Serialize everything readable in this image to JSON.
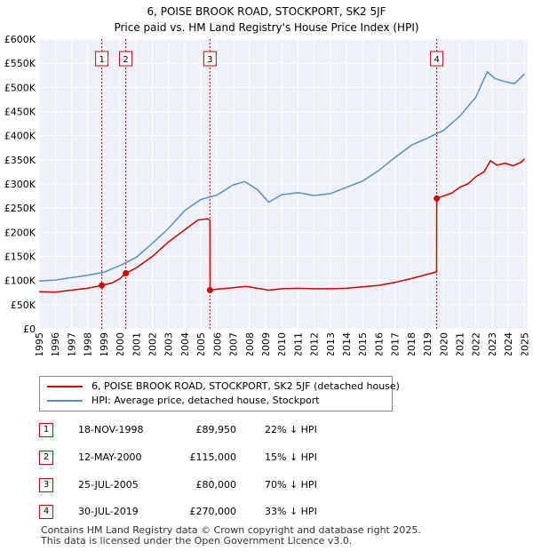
{
  "chart_data": {
    "type": "line",
    "title": "6, POISE BROOK ROAD, STOCKPORT, SK2 5JF",
    "subtitle": "Price paid vs. HM Land Registry's House Price Index (HPI)",
    "xlim": [
      1995,
      2025.2
    ],
    "ylim": [
      0,
      600000
    ],
    "y_ticks": [
      0,
      50000,
      100000,
      150000,
      200000,
      250000,
      300000,
      350000,
      400000,
      450000,
      500000,
      550000,
      600000
    ],
    "y_tick_labels": [
      "£0",
      "£50K",
      "£100K",
      "£150K",
      "£200K",
      "£250K",
      "£300K",
      "£350K",
      "£400K",
      "£450K",
      "£500K",
      "£550K",
      "£600K"
    ],
    "x_ticks": [
      1995,
      1996,
      1997,
      1998,
      1999,
      2000,
      2001,
      2002,
      2003,
      2004,
      2005,
      2006,
      2007,
      2008,
      2009,
      2010,
      2011,
      2012,
      2013,
      2014,
      2015,
      2016,
      2017,
      2018,
      2019,
      2020,
      2021,
      2022,
      2023,
      2024,
      2025
    ],
    "x_tick_labels": [
      "1995",
      "1996",
      "1997",
      "1998",
      "1999",
      "2000",
      "2001",
      "2002",
      "2003",
      "2004",
      "2005",
      "2006",
      "2007",
      "2008",
      "2009",
      "2010",
      "2011",
      "2012",
      "2013",
      "2014",
      "2015",
      "2016",
      "2017",
      "2018",
      "2019",
      "2020",
      "2021",
      "2022",
      "2023",
      "2024",
      "2025"
    ],
    "grid": true,
    "series": [
      {
        "name": "6, POISE BROOK ROAD, STOCKPORT, SK2 5JF (detached house)",
        "color": "#cc0000",
        "x": [
          1995.0,
          1996.0,
          1997.0,
          1998.0,
          1998.88,
          1999.5,
          2000.0,
          2000.36,
          2001.0,
          2002.0,
          2003.0,
          2004.0,
          2004.8,
          2005.4,
          2005.56,
          2005.57,
          2006.0,
          2007.0,
          2007.8,
          2008.5,
          2009.2,
          2010.0,
          2011.0,
          2012.0,
          2013.0,
          2014.0,
          2015.0,
          2016.0,
          2017.0,
          2018.0,
          2019.0,
          2019.57,
          2019.58,
          2020.0,
          2020.5,
          2021.0,
          2021.5,
          2022.0,
          2022.5,
          2022.9,
          2023.3,
          2023.8,
          2024.3,
          2024.8,
          2025.0
        ],
        "y": [
          77000,
          76000,
          80000,
          84000,
          89950,
          95000,
          104000,
          115000,
          126000,
          150000,
          180000,
          205000,
          225000,
          228000,
          225000,
          80000,
          82000,
          85000,
          88000,
          84000,
          80000,
          83000,
          84000,
          83000,
          83000,
          84000,
          87000,
          90000,
          96000,
          104000,
          113000,
          118000,
          270000,
          275000,
          281000,
          293000,
          300000,
          315000,
          325000,
          348000,
          339000,
          343000,
          338000,
          345000,
          352000
        ]
      },
      {
        "name": "HPI: Average price, detached house, Stockport",
        "color": "#5b8fc9",
        "x": [
          1995.0,
          1996.0,
          1997.0,
          1998.0,
          1999.0,
          2000.0,
          2001.0,
          2002.0,
          2003.0,
          2004.0,
          2005.0,
          2006.0,
          2007.0,
          2007.7,
          2008.5,
          2009.2,
          2010.0,
          2011.0,
          2012.0,
          2013.0,
          2014.0,
          2015.0,
          2016.0,
          2017.0,
          2018.0,
          2019.0,
          2020.0,
          2021.0,
          2022.0,
          2022.7,
          2023.2,
          2023.8,
          2024.4,
          2025.0
        ],
        "y": [
          99000,
          101000,
          106000,
          111000,
          117000,
          131000,
          148000,
          177000,
          208000,
          245000,
          268000,
          277000,
          298000,
          305000,
          288000,
          262000,
          278000,
          282000,
          276000,
          280000,
          293000,
          306000,
          328000,
          355000,
          380000,
          395000,
          411000,
          440000,
          480000,
          532000,
          518000,
          512000,
          508000,
          528000
        ]
      }
    ],
    "sale_markers": [
      {
        "label": "1",
        "x": 1998.88,
        "y": 89950
      },
      {
        "label": "2",
        "x": 2000.36,
        "y": 115000
      },
      {
        "label": "3",
        "x": 2005.56,
        "y": 80000
      },
      {
        "label": "4",
        "x": 2019.58,
        "y": 270000
      }
    ]
  },
  "sales": [
    {
      "num": "1",
      "date": "18-NOV-1998",
      "price": "£89,950",
      "hpi": "22% ↓ HPI"
    },
    {
      "num": "2",
      "date": "12-MAY-2000",
      "price": "£115,000",
      "hpi": "15% ↓ HPI"
    },
    {
      "num": "3",
      "date": "25-JUL-2005",
      "price": "£80,000",
      "hpi": "70% ↓ HPI"
    },
    {
      "num": "4",
      "date": "30-JUL-2019",
      "price": "£270,000",
      "hpi": "33% ↓ HPI"
    }
  ],
  "legend": {
    "property_label": "6, POISE BROOK ROAD, STOCKPORT, SK2 5JF (detached house)",
    "hpi_label": "HPI: Average price, detached house, Stockport"
  },
  "footer": {
    "line1": "Contains HM Land Registry data © Crown copyright and database right 2025.",
    "line2": "This data is licensed under the Open Government Licence v3.0."
  }
}
